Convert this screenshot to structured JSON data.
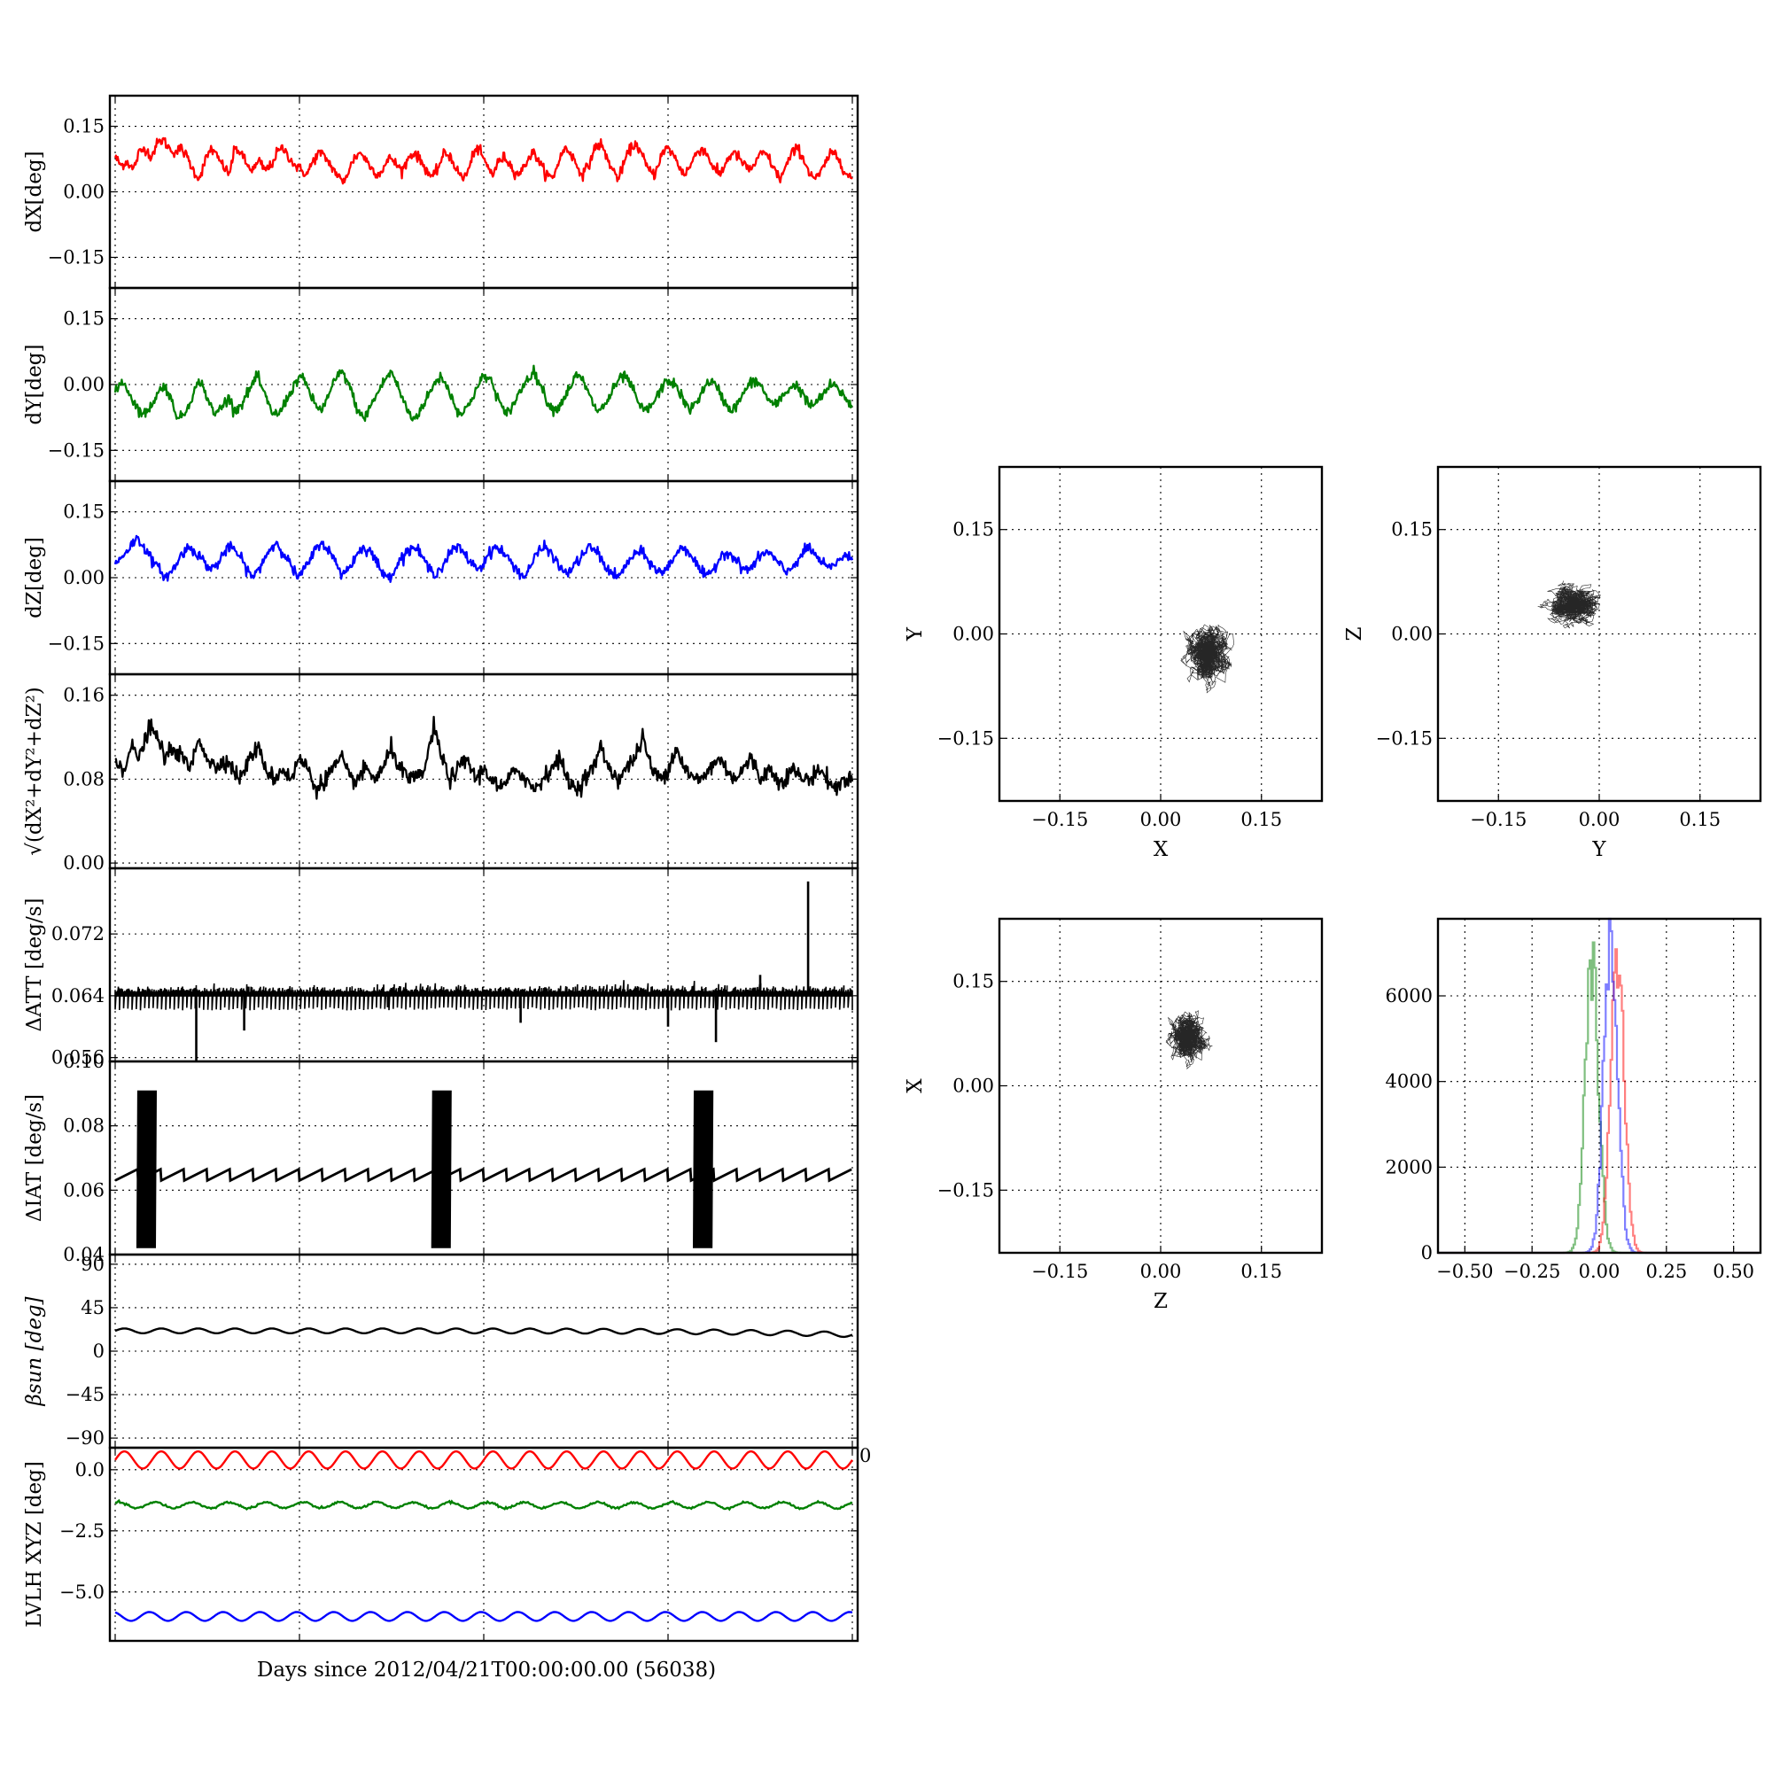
{
  "xlabel": "Days since 2012/04/21T00:00:00.00 (56038)",
  "colors": {
    "x": "#ff0000",
    "y": "#008000",
    "z": "#0000ff",
    "k": "#000000"
  },
  "chart_data": [
    {
      "id": "dx",
      "type": "line",
      "ylabel": "dX[deg]",
      "ylim": [
        -0.22,
        0.22
      ],
      "yticks": [
        "0.15",
        "0.00",
        "−0.15"
      ],
      "ytick_values": [
        0.15,
        0.0,
        -0.15
      ],
      "series_color": "#ff0000",
      "xlim": [
        0,
        1
      ],
      "xgrid": [
        0,
        0.25,
        0.5,
        0.75,
        1.0
      ],
      "grid": true,
      "values": [
        0.08,
        0.06,
        0.07,
        0.05,
        0.09,
        0.1,
        0.08,
        0.11,
        0.12,
        0.1,
        0.09,
        0.1,
        0.08,
        0.05,
        0.03,
        0.07,
        0.1,
        0.08,
        0.06,
        0.04,
        0.1,
        0.09,
        0.06,
        0.05,
        0.07,
        0.05,
        0.06,
        0.09,
        0.1,
        0.08,
        0.06,
        0.05,
        0.04,
        0.07,
        0.09,
        0.08,
        0.06,
        0.04,
        0.02,
        0.05,
        0.08,
        0.09,
        0.07,
        0.05,
        0.04,
        0.06,
        0.08,
        0.06,
        0.05,
        0.08,
        0.09,
        0.07,
        0.05,
        0.03,
        0.06,
        0.09,
        0.08,
        0.05,
        0.03,
        0.05,
        0.1,
        0.09,
        0.06,
        0.04,
        0.07,
        0.08,
        0.06,
        0.04,
        0.05,
        0.08,
        0.09,
        0.06,
        0.04,
        0.03,
        0.07,
        0.1,
        0.09,
        0.06,
        0.04,
        0.06,
        0.1,
        0.11,
        0.08,
        0.05,
        0.03,
        0.07,
        0.1,
        0.11,
        0.08,
        0.05,
        0.04,
        0.08,
        0.1,
        0.09,
        0.06,
        0.04,
        0.06,
        0.09,
        0.1,
        0.08,
        0.05,
        0.04,
        0.07,
        0.09,
        0.08,
        0.06,
        0.05,
        0.07,
        0.09,
        0.08,
        0.05,
        0.03,
        0.06,
        0.09,
        0.1,
        0.07,
        0.04,
        0.03,
        0.05,
        0.08,
        0.09,
        0.07,
        0.04,
        0.03
      ]
    },
    {
      "id": "dy",
      "type": "line",
      "ylabel": "dY[deg]",
      "ylim": [
        -0.22,
        0.22
      ],
      "yticks": [
        "0.15",
        "0.00",
        "−0.15"
      ],
      "ytick_values": [
        0.15,
        0.0,
        -0.15
      ],
      "series_color": "#008000",
      "xlim": [
        0,
        1
      ],
      "xgrid": [
        0,
        0.25,
        0.5,
        0.75,
        1.0
      ],
      "grid": true,
      "values": [
        -0.02,
        0.01,
        -0.02,
        -0.05,
        -0.07,
        -0.05,
        -0.02,
        0.0,
        -0.04,
        -0.08,
        -0.06,
        -0.02,
        0.01,
        -0.03,
        -0.07,
        -0.05,
        -0.03,
        -0.06,
        -0.04,
        -0.01,
        0.02,
        -0.02,
        -0.06,
        -0.07,
        -0.04,
        -0.01,
        0.02,
        0.0,
        -0.04,
        -0.06,
        -0.03,
        0.01,
        0.03,
        0.0,
        -0.05,
        -0.08,
        -0.05,
        -0.02,
        0.01,
        0.03,
        -0.01,
        -0.05,
        -0.08,
        -0.06,
        -0.03,
        0.0,
        0.02,
        -0.01,
        -0.05,
        -0.07,
        -0.04,
        -0.01,
        0.02,
        0.01,
        -0.03,
        -0.07,
        -0.05,
        -0.02,
        0.01,
        0.03,
        0.0,
        -0.04,
        -0.06,
        -0.04,
        -0.01,
        0.02,
        0.01,
        -0.03,
        -0.06,
        -0.05,
        -0.02,
        0.01,
        0.02,
        -0.01,
        -0.05,
        -0.06,
        -0.04,
        -0.01,
        0.01,
        0.0,
        -0.03,
        -0.06,
        -0.04,
        -0.01,
        0.01,
        -0.01,
        -0.04,
        -0.06,
        -0.04,
        -0.01,
        0.01,
        0.0,
        -0.03,
        -0.05,
        -0.03,
        -0.01,
        0.0,
        -0.02,
        -0.05,
        -0.04,
        -0.02,
        0.0,
        -0.01,
        -0.03,
        -0.05
      ]
    },
    {
      "id": "dz",
      "type": "line",
      "ylabel": "dZ[deg]",
      "ylim": [
        -0.22,
        0.22
      ],
      "yticks": [
        "0.15",
        "0.00",
        "−0.15"
      ],
      "ytick_values": [
        0.15,
        0.0,
        -0.15
      ],
      "series_color": "#0000ff",
      "xlim": [
        0,
        1
      ],
      "xgrid": [
        0,
        0.25,
        0.5,
        0.75,
        1.0
      ],
      "grid": true,
      "values": [
        0.03,
        0.05,
        0.07,
        0.09,
        0.07,
        0.04,
        0.02,
        0.0,
        0.02,
        0.05,
        0.07,
        0.06,
        0.04,
        0.02,
        0.03,
        0.06,
        0.07,
        0.05,
        0.02,
        0.0,
        0.03,
        0.06,
        0.08,
        0.06,
        0.03,
        0.0,
        0.02,
        0.05,
        0.08,
        0.07,
        0.04,
        0.01,
        0.02,
        0.05,
        0.07,
        0.06,
        0.03,
        0.0,
        0.01,
        0.04,
        0.06,
        0.07,
        0.05,
        0.02,
        0.01,
        0.03,
        0.06,
        0.07,
        0.05,
        0.03,
        0.02,
        0.05,
        0.07,
        0.06,
        0.04,
        0.02,
        0.0,
        0.03,
        0.06,
        0.07,
        0.05,
        0.02,
        0.01,
        0.03,
        0.05,
        0.07,
        0.06,
        0.03,
        0.01,
        0.0,
        0.03,
        0.05,
        0.06,
        0.04,
        0.02,
        0.01,
        0.03,
        0.06,
        0.07,
        0.05,
        0.02,
        0.0,
        0.02,
        0.05,
        0.06,
        0.04,
        0.02,
        0.02,
        0.04,
        0.06,
        0.05,
        0.03,
        0.01,
        0.03,
        0.05,
        0.07,
        0.05,
        0.03,
        0.02,
        0.04,
        0.05,
        0.04
      ]
    },
    {
      "id": "dxyz",
      "type": "line",
      "ylabel": "√(dX²+dY²+dZ²)",
      "ylim": [
        -0.005,
        0.18
      ],
      "yticks": [
        "0.16",
        "0.08",
        "0.00"
      ],
      "ytick_values": [
        0.16,
        0.08,
        0.0
      ],
      "series_color": "#000000",
      "xlim": [
        0,
        1
      ],
      "xgrid": [
        0,
        0.25,
        0.5,
        0.75,
        1.0
      ],
      "grid": true,
      "values": [
        0.1,
        0.09,
        0.11,
        0.1,
        0.13,
        0.12,
        0.1,
        0.11,
        0.1,
        0.09,
        0.12,
        0.1,
        0.09,
        0.1,
        0.09,
        0.08,
        0.1,
        0.11,
        0.09,
        0.08,
        0.09,
        0.08,
        0.1,
        0.09,
        0.07,
        0.08,
        0.09,
        0.1,
        0.08,
        0.08,
        0.09,
        0.08,
        0.09,
        0.11,
        0.09,
        0.08,
        0.08,
        0.09,
        0.13,
        0.1,
        0.08,
        0.09,
        0.1,
        0.08,
        0.09,
        0.08,
        0.07,
        0.08,
        0.09,
        0.08,
        0.07,
        0.08,
        0.09,
        0.1,
        0.08,
        0.07,
        0.08,
        0.09,
        0.11,
        0.09,
        0.08,
        0.09,
        0.1,
        0.12,
        0.09,
        0.08,
        0.09,
        0.11,
        0.09,
        0.08,
        0.08,
        0.09,
        0.1,
        0.09,
        0.08,
        0.09,
        0.1,
        0.08,
        0.09,
        0.08,
        0.08,
        0.09,
        0.08,
        0.08,
        0.09,
        0.08,
        0.07,
        0.08,
        0.08
      ]
    },
    {
      "id": "datt",
      "type": "line",
      "ylabel": "ΔATT [deg/s]",
      "ylim": [
        0.0555,
        0.0805
      ],
      "yticks": [
        "0.072",
        "0.064",
        "0.056"
      ],
      "ytick_values": [
        0.072,
        0.064,
        0.056
      ],
      "series_color": "#000000",
      "xlim": [
        0,
        1
      ],
      "xgrid": [
        0,
        0.25,
        0.5,
        0.75,
        1.0
      ],
      "grid": true,
      "baseline": 0.0645,
      "band_low": 0.0625,
      "spikes": [
        [
          0.11,
          0.0555
        ],
        [
          0.175,
          0.0595
        ],
        [
          0.37,
          0.0625
        ],
        [
          0.55,
          0.0605
        ],
        [
          0.75,
          0.06
        ],
        [
          0.815,
          0.058
        ],
        [
          0.875,
          0.0667
        ],
        [
          0.94,
          0.0788
        ]
      ]
    },
    {
      "id": "diat",
      "type": "line",
      "ylabel": "ΔIAT [deg/s]",
      "ylim": [
        0.04,
        0.1
      ],
      "yticks": [
        "0.10",
        "0.08",
        "0.06",
        "0.04"
      ],
      "ytick_values": [
        0.1,
        0.08,
        0.06,
        0.04
      ],
      "series_color": "#000000",
      "xlim": [
        0,
        1
      ],
      "xgrid": [
        0,
        0.25,
        0.5,
        0.75,
        1.0
      ],
      "grid": true,
      "saw_low": 0.063,
      "saw_high": 0.0665,
      "bursts": [
        0.03,
        0.43,
        0.785
      ],
      "burst_low": 0.042,
      "burst_high": 0.091
    },
    {
      "id": "bsun",
      "type": "line",
      "ylabel": "βsun [deg]",
      "ylim": [
        -100,
        100
      ],
      "yticks": [
        "90",
        "45",
        "0",
        "−45",
        "−90"
      ],
      "ytick_values": [
        90,
        45,
        0,
        -45,
        -90
      ],
      "series_color": "#000000",
      "xlim": [
        0,
        1
      ],
      "xgrid": [
        0,
        0.25,
        0.5,
        0.75,
        1.0
      ],
      "grid": true,
      "mean": 21,
      "amplitude": 2.5,
      "end_value": 17
    },
    {
      "id": "lvlh",
      "type": "line",
      "ylabel": "LVLH XYZ [deg]",
      "ylim": [
        -7.0,
        0.9
      ],
      "yticks": [
        "0.0",
        "−2.5",
        "−5.0"
      ],
      "ytick_values": [
        0.0,
        -2.5,
        -5.0
      ],
      "xlim": [
        0,
        1
      ],
      "xgrid": [
        0,
        0.25,
        0.5,
        0.75,
        1.0
      ],
      "grid": true,
      "series": [
        {
          "name": "X",
          "color": "#ff0000",
          "mean": 0.4,
          "amplitude": 0.35
        },
        {
          "name": "Y",
          "color": "#008000",
          "mean": -1.45,
          "amplitude": 0.12
        },
        {
          "name": "Z",
          "color": "#0000ff",
          "mean": -6.0,
          "amplitude": 0.18
        }
      ],
      "cycles": 20,
      "stray_tick": "0"
    },
    {
      "id": "xy",
      "type": "scatter",
      "xlabel": "X",
      "ylabel": "Y",
      "xlim": [
        -0.24,
        0.24
      ],
      "ylim": [
        -0.24,
        0.24
      ],
      "xticks": [
        "−0.15",
        "0.00",
        "0.15"
      ],
      "yticks": [
        "0.15",
        "0.00",
        "−0.15"
      ],
      "tick_values": [
        -0.15,
        0.0,
        0.15
      ],
      "center": [
        0.07,
        -0.03
      ],
      "spread": [
        0.025,
        0.03
      ],
      "grid": true
    },
    {
      "id": "yz",
      "type": "scatter",
      "xlabel": "Y",
      "ylabel": "Z",
      "xlim": [
        -0.24,
        0.24
      ],
      "ylim": [
        -0.24,
        0.24
      ],
      "xticks": [
        "−0.15",
        "0.00",
        "0.15"
      ],
      "yticks": [
        "0.15",
        "0.00",
        "−0.15"
      ],
      "tick_values": [
        -0.15,
        0.0,
        0.15
      ],
      "center": [
        -0.04,
        0.04
      ],
      "spread": [
        0.028,
        0.02
      ],
      "grid": true
    },
    {
      "id": "zx",
      "type": "scatter",
      "xlabel": "Z",
      "ylabel": "X",
      "xlim": [
        -0.24,
        0.24
      ],
      "ylim": [
        -0.24,
        0.24
      ],
      "xticks": [
        "−0.15",
        "0.00",
        "0.15"
      ],
      "yticks": [
        "0.15",
        "0.00",
        "−0.15"
      ],
      "tick_values": [
        -0.15,
        0.0,
        0.15
      ],
      "center": [
        0.04,
        0.07
      ],
      "spread": [
        0.02,
        0.025
      ],
      "grid": true
    },
    {
      "id": "hist",
      "type": "bar",
      "xlim": [
        -0.6,
        0.6
      ],
      "ylim": [
        0,
        7800
      ],
      "xticks": [
        "−0.50",
        "−0.25",
        "0.00",
        "0.25",
        "0.50"
      ],
      "xtick_values": [
        -0.5,
        -0.25,
        0.0,
        0.25,
        0.5
      ],
      "yticks": [
        "6000",
        "4000",
        "2000",
        "0"
      ],
      "ytick_values": [
        6000,
        4000,
        2000,
        0
      ],
      "grid": true,
      "series": [
        {
          "name": "dX",
          "color": "#ff0000",
          "mean": 0.065,
          "sd": 0.025,
          "peak": 6900
        },
        {
          "name": "dY",
          "color": "#008000",
          "mean": -0.03,
          "sd": 0.025,
          "peak": 6600
        },
        {
          "name": "dZ",
          "color": "#0000ff",
          "mean": 0.04,
          "sd": 0.025,
          "peak": 7800
        }
      ]
    }
  ]
}
